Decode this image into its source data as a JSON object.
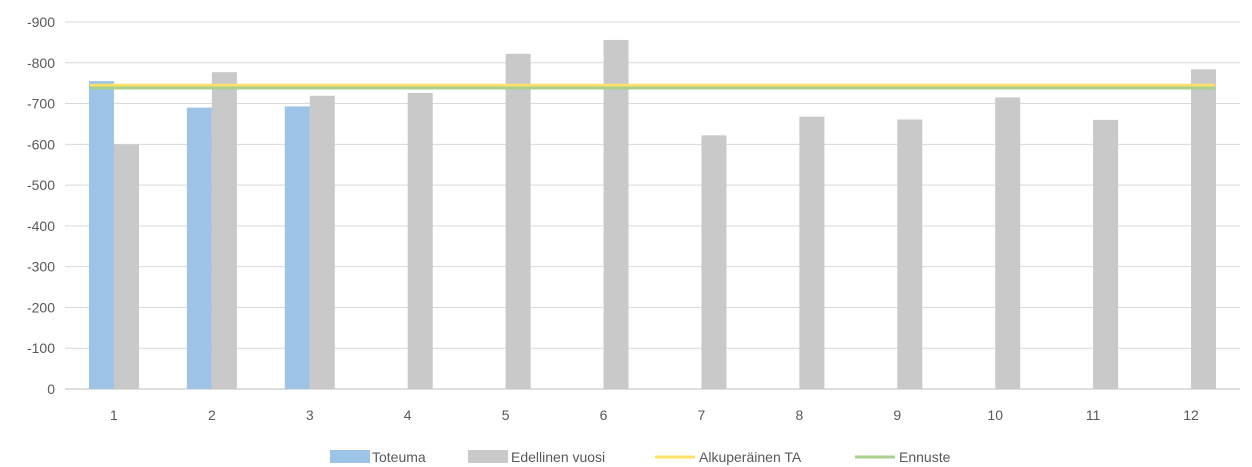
{
  "chart_data": {
    "type": "bar",
    "categories": [
      "1",
      "2",
      "3",
      "4",
      "5",
      "6",
      "7",
      "8",
      "9",
      "10",
      "11",
      "12"
    ],
    "y_ticks": [
      "0",
      "-100",
      "-200",
      "-300",
      "-400",
      "-500",
      "-600",
      "-700",
      "-800",
      "-900"
    ],
    "ylim": [
      0,
      -900
    ],
    "grid": true,
    "legend_position": "bottom",
    "series": [
      {
        "name": "Toteuma",
        "kind": "bar",
        "color": "#9DC3E6",
        "values": [
          -755,
          -690,
          -693,
          null,
          null,
          null,
          null,
          null,
          null,
          null,
          null,
          null
        ]
      },
      {
        "name": "Edellinen vuosi",
        "kind": "bar",
        "color": "#C9C9C9",
        "values": [
          -600,
          -777,
          -719,
          -726,
          -822,
          -856,
          -622,
          -668,
          -661,
          -715,
          -660,
          -784
        ]
      },
      {
        "name": "Alkuperäinen TA",
        "kind": "line",
        "color": "#FFE066",
        "values": [
          -745,
          -745,
          -745,
          -745,
          -745,
          -745,
          -745,
          -745,
          -745,
          -745,
          -745,
          -745
        ]
      },
      {
        "name": "Ennuste",
        "kind": "line",
        "color": "#A9D18E",
        "values": [
          -738,
          -738,
          -738,
          -738,
          -738,
          -738,
          -738,
          -738,
          -738,
          -738,
          -738,
          -738
        ]
      }
    ]
  }
}
